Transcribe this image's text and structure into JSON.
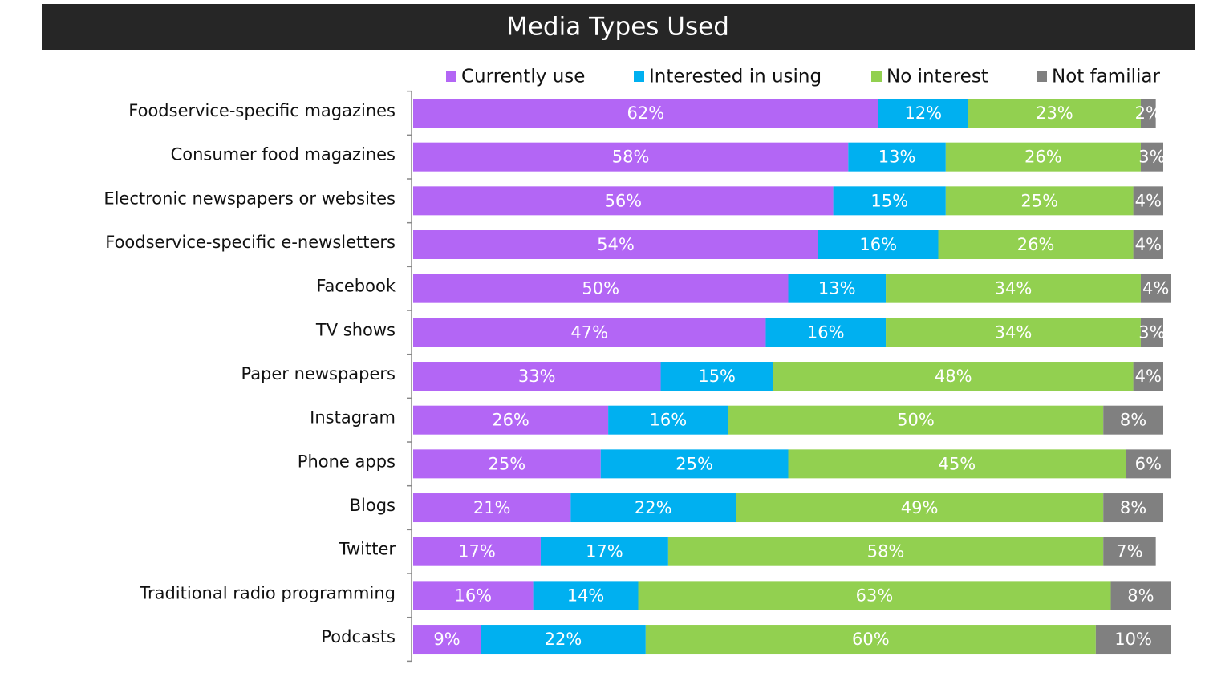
{
  "chart_data": {
    "type": "stacked-bar-horizontal",
    "title": "Media Types Used",
    "categories": [
      "Foodservice-specific magazines",
      "Consumer food magazines",
      "Electronic newspapers or websites",
      "Foodservice-specific e-newsletters",
      "Facebook",
      "TV shows",
      "Paper newspapers",
      "Instagram",
      "Phone apps",
      "Blogs",
      "Twitter",
      "Traditional radio programming",
      "Podcasts"
    ],
    "xlim": [
      0,
      100
    ],
    "legend": "top",
    "series": [
      {
        "name": "Currently use",
        "color": "#b366f5",
        "values": [
          62,
          58,
          56,
          54,
          50,
          47,
          33,
          26,
          25,
          21,
          17,
          16,
          9
        ],
        "value_labels": [
          "62%",
          "58%",
          "56%",
          "54%",
          "50%",
          "47%",
          "33%",
          "26%",
          "25%",
          "21%",
          "17%",
          "16%",
          "9%"
        ]
      },
      {
        "name": "Interested in using",
        "color": "#00b0f0",
        "values": [
          12,
          13,
          15,
          16,
          13,
          16,
          15,
          16,
          25,
          22,
          17,
          14,
          22
        ],
        "value_labels": [
          "12%",
          "13%",
          "15%",
          "16%",
          "13%",
          "16%",
          "15%",
          "16%",
          "25%",
          "22%",
          "17%",
          "14%",
          "22%"
        ]
      },
      {
        "name": "No interest",
        "color": "#92d050",
        "values": [
          23,
          26,
          25,
          26,
          34,
          34,
          48,
          50,
          45,
          49,
          58,
          63,
          60
        ],
        "value_labels": [
          "23%",
          "26%",
          "25%",
          "26%",
          "34%",
          "34%",
          "48%",
          "50%",
          "45%",
          "49%",
          "58%",
          "63%",
          "60%"
        ]
      },
      {
        "name": "Not familiar",
        "color": "#808080",
        "values": [
          2,
          3,
          4,
          4,
          4,
          3,
          4,
          8,
          6,
          8,
          7,
          8,
          10
        ],
        "value_labels": [
          "2%",
          "3%",
          "4%",
          "4%",
          "4%",
          "3%",
          "4%",
          "8%",
          "6%",
          "8%",
          "7%",
          "8%",
          "10%"
        ]
      }
    ]
  }
}
